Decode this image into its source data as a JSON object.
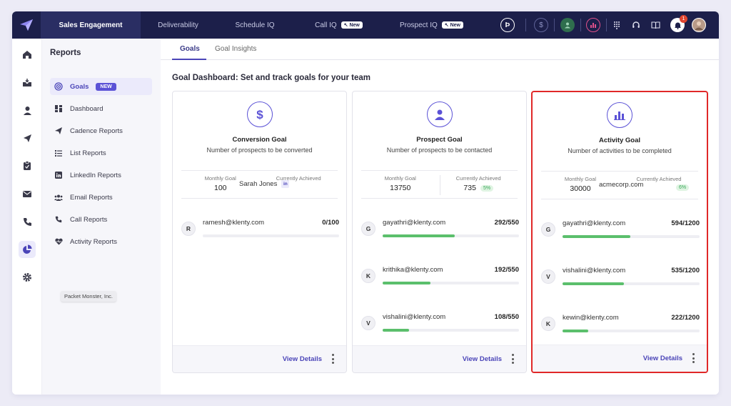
{
  "topbar": {
    "tabs": [
      {
        "label": "Sales Engagement",
        "badge": ""
      },
      {
        "label": "Deliverability",
        "badge": ""
      },
      {
        "label": "Schedule IQ",
        "badge": ""
      },
      {
        "label": "Call IQ",
        "badge": "New"
      },
      {
        "label": "Prospect IQ",
        "badge": "New"
      }
    ],
    "icons": [
      "brand-p-icon",
      "dollar-icon",
      "user-icon",
      "chart-icon",
      "grid-icon",
      "headset-icon",
      "book-icon",
      "bell-icon"
    ],
    "notification_count": "1"
  },
  "rail": {
    "icons": [
      "home-icon",
      "inbox-icon",
      "person-icon",
      "send-icon",
      "clipboard-icon",
      "mail-icon",
      "phone-icon",
      "pie-chart-icon",
      "gear-icon"
    ]
  },
  "sidebar": {
    "title": "Reports",
    "items": [
      {
        "label": "Goals",
        "icon": "target-icon",
        "badge": "NEW"
      },
      {
        "label": "Dashboard",
        "icon": "dashboard-icon"
      },
      {
        "label": "Cadence Reports",
        "icon": "send-icon"
      },
      {
        "label": "List Reports",
        "icon": "list-icon"
      },
      {
        "label": "LinkedIn Reports",
        "icon": "linkedin-icon"
      },
      {
        "label": "Email Reports",
        "icon": "people-icon"
      },
      {
        "label": "Call Reports",
        "icon": "phone-icon"
      },
      {
        "label": "Activity Reports",
        "icon": "heart-icon"
      }
    ],
    "tooltip": "Packet Monster, Inc."
  },
  "main": {
    "tabs": [
      "Goals",
      "Goal Insights"
    ],
    "title": "Goal Dashboard: Set and track goals for your team",
    "monthly_label": "Monthly Goal",
    "achieved_label": "Currently Achieved",
    "view_details": "View Details",
    "cards": [
      {
        "title": "Conversion Goal",
        "subtitle": "Number of prospects to be converted",
        "icon": "dollar-icon",
        "monthly_goal": "100",
        "achieved": "",
        "pct": "",
        "overlay": "Sarah Jones",
        "members": [
          {
            "initial": "R",
            "email": "ramesh@klenty.com",
            "count": "0/100",
            "progress": 0
          }
        ]
      },
      {
        "title": "Prospect Goal",
        "subtitle": "Number of prospects to be contacted",
        "icon": "user-icon",
        "monthly_goal": "13750",
        "achieved": "735",
        "pct": "5%",
        "overlay": "",
        "members": [
          {
            "initial": "G",
            "email": "gayathri@klenty.com",
            "count": "292/550",
            "progress": 0.531
          },
          {
            "initial": "K",
            "email": "krithika@klenty.com",
            "count": "192/550",
            "progress": 0.349
          },
          {
            "initial": "V",
            "email": "vishalini@klenty.com",
            "count": "108/550",
            "progress": 0.196
          }
        ]
      },
      {
        "title": "Activity Goal",
        "subtitle": "Number of activities to be completed",
        "icon": "chart-icon",
        "monthly_goal": "30000",
        "achieved": "",
        "pct": "6%",
        "overlay": "acmecorp.com",
        "members": [
          {
            "initial": "G",
            "email": "gayathri@klenty.com",
            "count": "594/1200",
            "progress": 0.495
          },
          {
            "initial": "V",
            "email": "vishalini@klenty.com",
            "count": "535/1200",
            "progress": 0.446
          },
          {
            "initial": "K",
            "email": "kewin@klenty.com",
            "count": "222/1200",
            "progress": 0.185
          }
        ]
      }
    ]
  },
  "colors": {
    "topbar": "#1c1f4a",
    "accent": "#5b52d6",
    "progress": "#5bbf6c",
    "highlight": "#e02828"
  }
}
